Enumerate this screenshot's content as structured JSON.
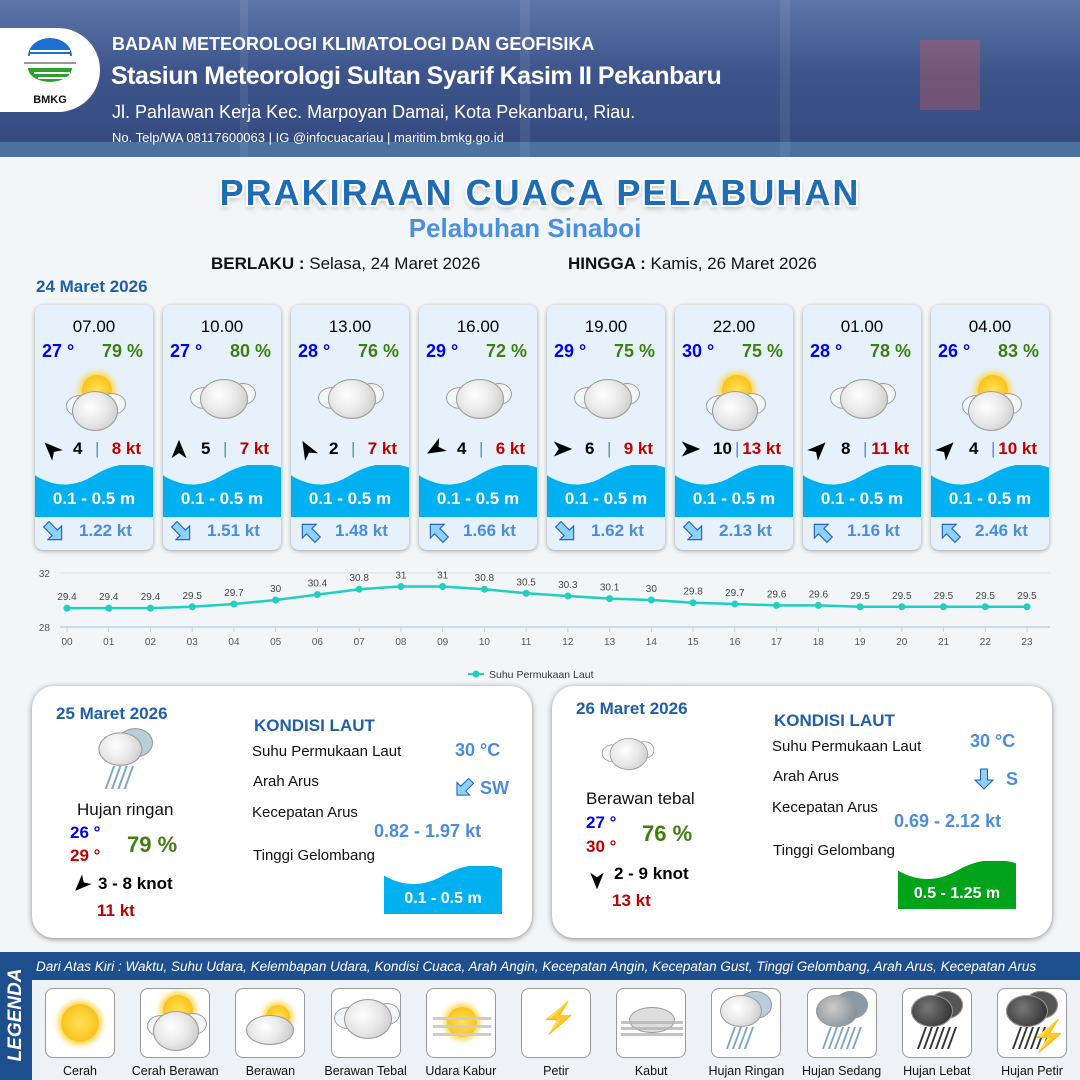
{
  "header": {
    "org": "BADAN METEOROLOGI KLIMATOLOGI DAN GEOFISIKA",
    "station": "Stasiun Meteorologi Sultan Syarif Kasim II Pekanbaru",
    "address": "Jl. Pahlawan Kerja Kec. Marpoyan Damai, Kota Pekanbaru, Riau.",
    "contact": "No. Telp/WA 08117600063 | IG @infocuacariau | maritim.bmkg.go.id",
    "logo_text": "BMKG"
  },
  "title": "PRAKIRAAN CUACA PELABUHAN",
  "subtitle": "Pelabuhan Sinaboi",
  "validity": {
    "from_label": "BERLAKU :",
    "from": "Selasa, 24 Maret 2026",
    "to_label": "HINGGA :",
    "to": "Kamis, 26 Maret 2026"
  },
  "day1": {
    "date": "24 Maret 2026",
    "forecasts": [
      {
        "time": "07.00",
        "temp": "27 °",
        "hum": "79 %",
        "icon": "cerah-berawan",
        "wind_dir_deg": 315,
        "wind": "4",
        "gust": "8 kt",
        "wave": "0.1 - 0.5 m",
        "current_dir_deg": 135,
        "current": "1.22 kt"
      },
      {
        "time": "10.00",
        "temp": "27 °",
        "hum": "80 %",
        "icon": "berawan-tebal",
        "wind_dir_deg": 0,
        "wind": "5",
        "gust": "7 kt",
        "wave": "0.1 - 0.5 m",
        "current_dir_deg": 135,
        "current": "1.51 kt"
      },
      {
        "time": "13.00",
        "temp": "28 °",
        "hum": "76 %",
        "icon": "berawan-tebal",
        "wind_dir_deg": 330,
        "wind": "2",
        "gust": "7 kt",
        "wave": "0.1 - 0.5 m",
        "current_dir_deg": 315,
        "current": "1.48 kt"
      },
      {
        "time": "16.00",
        "temp": "29 °",
        "hum": "72 %",
        "icon": "berawan-tebal",
        "wind_dir_deg": 240,
        "wind": "4",
        "gust": "6 kt",
        "wave": "0.1 - 0.5 m",
        "current_dir_deg": 315,
        "current": "1.66 kt"
      },
      {
        "time": "19.00",
        "temp": "29 °",
        "hum": "75 %",
        "icon": "berawan-tebal",
        "wind_dir_deg": 90,
        "wind": "6",
        "gust": "9 kt",
        "wave": "0.1 - 0.5 m",
        "current_dir_deg": 135,
        "current": "1.62 kt"
      },
      {
        "time": "22.00",
        "temp": "30 °",
        "hum": "75 %",
        "icon": "cerah-berawan",
        "wind_dir_deg": 90,
        "wind": "10",
        "gust": "13 kt",
        "wave": "0.1 - 0.5 m",
        "current_dir_deg": 135,
        "current": "2.13 kt"
      },
      {
        "time": "01.00",
        "temp": "28 °",
        "hum": "78 %",
        "icon": "berawan-tebal",
        "wind_dir_deg": 45,
        "wind": "8",
        "gust": "11 kt",
        "wave": "0.1 - 0.5 m",
        "current_dir_deg": 315,
        "current": "1.16 kt"
      },
      {
        "time": "04.00",
        "temp": "26 °",
        "hum": "83 %",
        "icon": "cerah-berawan",
        "wind_dir_deg": 45,
        "wind": "4",
        "gust": "10 kt",
        "wave": "0.1 - 0.5 m",
        "current_dir_deg": 315,
        "current": "2.46 kt"
      }
    ]
  },
  "chart_data": {
    "type": "line",
    "x": [
      "00",
      "01",
      "02",
      "03",
      "04",
      "05",
      "06",
      "07",
      "08",
      "09",
      "10",
      "11",
      "12",
      "13",
      "14",
      "15",
      "16",
      "17",
      "18",
      "19",
      "20",
      "21",
      "22",
      "23"
    ],
    "series": [
      {
        "name": "Suhu Permukaan Laut",
        "values": [
          29.4,
          29.4,
          29.4,
          29.5,
          29.7,
          30.0,
          30.4,
          30.8,
          31.0,
          31.0,
          30.8,
          30.5,
          30.3,
          30.1,
          30.0,
          29.8,
          29.7,
          29.6,
          29.6,
          29.5,
          29.5,
          29.5,
          29.5,
          29.5
        ],
        "color": "#1fcfbf"
      }
    ],
    "y_ticks": [
      "28",
      "32"
    ],
    "ylim": [
      28,
      32
    ],
    "grid": true,
    "legend": "bottom"
  },
  "days": [
    {
      "date": "25 Maret 2026",
      "condition": "Hujan ringan",
      "icon": "hujan-ringan",
      "tmin": "26 °",
      "tmax": "29 °",
      "hum": "79 %",
      "wind_dir_deg": 225,
      "wind": "3  - 8 knot",
      "gust": "11 kt",
      "sea_title": "KONDISI LAUT",
      "sst_label": "Suhu Permukaan Laut",
      "sst": "30 °C",
      "cur_dir_label": "Arah Arus",
      "cur_dir": "SW",
      "cur_dir_deg": 225,
      "cur_spd_label": "Kecepatan Arus",
      "cur_spd": "0.82  - 1.97 kt",
      "wave_label": "Tinggi Gelombang",
      "wave": "0.1 - 0.5 m",
      "wave_color": "#00b0f0"
    },
    {
      "date": "26 Maret 2026",
      "condition": "Berawan tebal",
      "icon": "berawan-tebal",
      "tmin": "27 °",
      "tmax": "30 °",
      "hum": "76 %",
      "wind_dir_deg": 180,
      "wind": "2  - 9 knot",
      "gust": "13 kt",
      "sea_title": "KONDISI LAUT",
      "sst_label": "Suhu Permukaan Laut",
      "sst": "30 °C",
      "cur_dir_label": "Arah Arus",
      "cur_dir": "S",
      "cur_dir_deg": 180,
      "cur_spd_label": "Kecepatan Arus",
      "cur_spd": "0.69  - 2.12 kt",
      "wave_label": "Tinggi Gelombang",
      "wave": "0.5 - 1.25 m",
      "wave_color": "#00a31a"
    }
  ],
  "legend": {
    "title": "LEGENDA",
    "description": "Dari Atas Kiri : Waktu, Suhu Udara, Kelembapan Udara, Kondisi Cuaca, Arah Angin, Kecepatan Angin, Kecepatan Gust, Tinggi Gelombang, Arah Arus, Kecepatan Arus",
    "items": [
      {
        "label": "Cerah",
        "icon": "cerah"
      },
      {
        "label": "Cerah Berawan",
        "icon": "cerah-berawan"
      },
      {
        "label": "Berawan",
        "icon": "berawan"
      },
      {
        "label": "Berawan Tebal",
        "icon": "berawan-tebal"
      },
      {
        "label": "Udara Kabur",
        "icon": "udara-kabur"
      },
      {
        "label": "Petir",
        "icon": "petir"
      },
      {
        "label": "Kabut",
        "icon": "kabut"
      },
      {
        "label": "Hujan Ringan",
        "icon": "hujan-ringan"
      },
      {
        "label": "Hujan Sedang",
        "icon": "hujan-sedang"
      },
      {
        "label": "Hujan Lebat",
        "icon": "hujan-lebat"
      },
      {
        "label": "Hujan Petir",
        "icon": "hujan-petir"
      }
    ]
  },
  "colors": {
    "brand_blue": "#1f5fa8",
    "wave_cyan": "#00b0f0",
    "temp_blue": "#0000ee",
    "humidity_green": "#3f7f12",
    "gust_red": "#c00000",
    "current_blue": "#4a8ddc"
  }
}
